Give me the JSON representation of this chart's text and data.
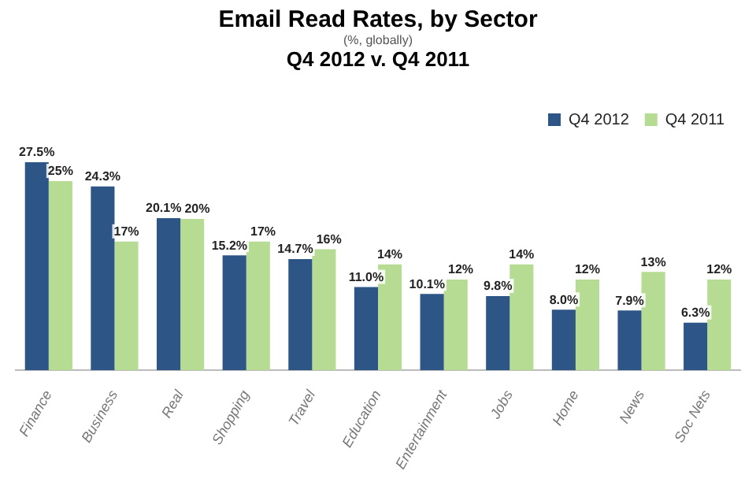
{
  "chart_data": {
    "type": "bar",
    "title": "Email Read Rates, by Sector",
    "subtitle": "(%, globally)",
    "annotations": [
      "Q4 2012 v. Q4 2011"
    ],
    "categories": [
      "Finance",
      "Business",
      "Real",
      "Shopping",
      "Travel",
      "Education",
      "Entertainment",
      "Jobs",
      "Home",
      "News",
      "Soc Nets"
    ],
    "series": [
      {
        "name": "Q4 2012",
        "color": "#2d5586",
        "values": [
          27.5,
          24.3,
          20.1,
          15.2,
          14.7,
          11.0,
          10.1,
          9.8,
          8.0,
          7.9,
          6.3
        ],
        "value_labels": [
          "27.5%",
          "24.3%",
          "20.1%",
          "15.2%",
          "14.7%",
          "11.0%",
          "10.1%",
          "9.8%",
          "8.0%",
          "7.9%",
          "6.3%"
        ]
      },
      {
        "name": "Q4 2011",
        "color": "#b6dc94",
        "values": [
          25,
          17,
          20,
          17,
          16,
          14,
          12,
          14,
          12,
          13,
          12
        ],
        "value_labels": [
          "25%",
          "17%",
          "20%",
          "17%",
          "16%",
          "14%",
          "12%",
          "14%",
          "12%",
          "13%",
          "12%"
        ]
      }
    ],
    "legend": "top right",
    "grid": false
  }
}
